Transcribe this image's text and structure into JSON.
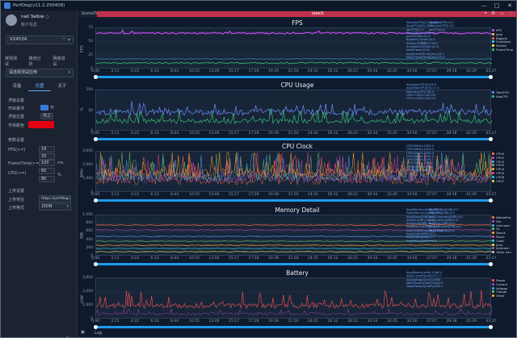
{
  "window": {
    "title": "PerfDog(v11.2.250408)",
    "controls": [
      "—",
      "□",
      "✕"
    ]
  },
  "user": {
    "name": "nail 3albie ◌",
    "status": "帐户信息"
  },
  "device": {
    "name": "V2453A"
  },
  "sidebar": {
    "tabs": [
      "常规测试",
      "离线分析",
      "网络测试"
    ],
    "app_placeholder": "请选择测试应用",
    "subtabs": [
      "设备",
      "设置",
      "关于"
    ],
    "float_section": "浮窗设置",
    "open_float": "开启悬浮",
    "open_float_value": "开",
    "float_position": "浮窗位置",
    "float_position_value": "右上",
    "font_color": "字体颜色",
    "params_section": "参数设置",
    "fps_label": "FPS(>=)",
    "fps_value": "18",
    "fps_value2": "25",
    "frametime_label": "FrameTime(>=)",
    "frametime_value": "100",
    "frametime_unit": "ms",
    "cpu_label": "CPU(<=)",
    "cpu_value": "60",
    "cpu_unit": "%",
    "cpu_value2": "80",
    "upload_section": "上传设置",
    "upload_addr_label": "上传地址",
    "upload_addr": "https://perfdog.q",
    "upload_fmt_label": "上传格式",
    "upload_fmt": "JSON",
    "bottom_btn": "数据"
  },
  "tabbar": {
    "scene_tab": "SceneTab",
    "label": "label1"
  },
  "bottombar": {
    "log": "Log"
  },
  "accent": "#c1314b",
  "xticks": [
    "0:00",
    "2:11",
    "4:22",
    "6:33",
    "8:44",
    "10:55",
    "13:06",
    "15:17",
    "17:28",
    "19:39",
    "21:50",
    "24:01",
    "26:12",
    "28:23",
    "30:34",
    "32:45",
    "34:56",
    "37:07",
    "39:18",
    "41:29",
    "43:27"
  ],
  "panels": [
    {
      "title": "FPS",
      "ylabel": "FPS",
      "yticks": [
        "75",
        "50",
        "25",
        "0"
      ],
      "stats": [
        "Median(FPS)[120]:60.0",
        "Avg(FPS)[60]:59.7",
        "Var(FPS):0.1",
        "Drop(FPS):0(/10min)",
        "Jank(/10min):0.0",
        "BigJank(/10min):0.0",
        "Stutter(卡顿率):0.00%",
        "SmallJank(/10min):0.0",
        "InterFrame:0.00",
        "Avg(FrameTime)[ms]:16.7",
        "Max(FrameTime)[ms]:33.3"
      ],
      "stats2": [
        "Avg(JankFPS):0.0",
        "Max(JankFPS):0.0",
        "JankTime:0"
      ],
      "legend": [
        {
          "name": "FPS",
          "color": "#c04cf0"
        },
        {
          "name": "Jank",
          "color": "#ffb74d"
        },
        {
          "name": "BigJank",
          "color": "#ff5252"
        },
        {
          "name": "SmallJank",
          "color": "#4dd0e1"
        },
        {
          "name": "Stutter",
          "color": "#ffee58"
        },
        {
          "name": "FrameTime",
          "color": "#38c172"
        }
      ]
    },
    {
      "title": "CPU Usage",
      "ylabel": "%",
      "yticks": [
        "100",
        "50",
        "0"
      ],
      "stats": [
        "Avg(AppCPU)[%]:8.5",
        "Avg(TotalCPU)[%]:17.4",
        "Max(AppCPU):26.3",
        "CPU<=60%:100.0%",
        "CPU<=80%:100.0%"
      ],
      "stats2": [],
      "legend": [
        {
          "name": "TotalCPU",
          "color": "#6a8cff"
        },
        {
          "name": "AppCPU",
          "color": "#38c172"
        }
      ]
    },
    {
      "title": "CPU Clock",
      "ylabel": "MHz",
      "yticks": [
        "3,000",
        "2,000",
        "1,000",
        "0"
      ],
      "stats": [
        "CPU0(MHz):1023.4",
        "CPU1(MHz):1023.4",
        "CPU2(MHz):1204.4",
        "CPU3(MHz):1204.4",
        "CPU4(MHz):1378.1",
        "CPU5(MHz):1378.1",
        "CPU6(MHz):1378.1",
        "CPU7(MHz):1626.2"
      ],
      "stats2": [],
      "legend": [
        {
          "name": "CPU0",
          "color": "#ff7043"
        },
        {
          "name": "CPU1",
          "color": "#ab47bc"
        },
        {
          "name": "CPU2",
          "color": "#42a5f5"
        },
        {
          "name": "CPU3",
          "color": "#66bb6a"
        },
        {
          "name": "CPU4",
          "color": "#ffa726"
        },
        {
          "name": "CPU5",
          "color": "#ec407a"
        },
        {
          "name": "CPU6",
          "color": "#26c6da"
        },
        {
          "name": "CPU7",
          "color": "#d4e157"
        }
      ]
    },
    {
      "title": "Memory Detail",
      "ylabel": "MB",
      "yticks": [
        "1,000",
        "800",
        "600",
        "400",
        "200",
        "0"
      ],
      "stats": [
        "Avg(Memory)[MB]:760.3",
        "Peak(Memory)[MB]:793.1",
        "Avg(Swap)[MB]:0.0",
        "Avg(GL)[MB]:146.5",
        "Avg(Java)[MB]:42.6",
        "Avg(Native)[MB]:112.3",
        "Avg(Graphics)[MB]:219.8",
        "Avg(Code)[MB]:92.1",
        "Avg(Stack)[MB]:1.2",
        "Avg(Other)[MB]:55.8"
      ],
      "stats2": [
        "Avg(Virtual)[MB]:0.0",
        "Avg(PSS)[MB]:0.0",
        "Avg(Unknown)[MB]:0.0",
        "Avg(Dalvik)[MB]:0.0",
        "Avg(EGL)[MB]:0.0",
        "Avg(Ashmem)[MB]:0.0",
        "Avg(Dex)[MB]:0.0"
      ],
      "legend": [
        {
          "name": "NativePss",
          "color": "#ff7043"
        },
        {
          "name": "Gfx",
          "color": "#ab47bc"
        },
        {
          "name": "Unknown",
          "color": "#42a5f5"
        },
        {
          "name": "GL",
          "color": "#66bb6a"
        },
        {
          "name": "Dalvik",
          "color": "#ffa726"
        },
        {
          "name": "Stack",
          "color": "#ec407a"
        },
        {
          "name": "Code",
          "color": "#26c6da"
        },
        {
          "name": "Java",
          "color": "#d4e157"
        },
        {
          "name": "Ashmem",
          "color": "#8d6e63"
        },
        {
          "name": "Other dev",
          "color": "#bdbdbd"
        }
      ]
    },
    {
      "title": "Battery",
      "ylabel": "mW",
      "yticks": [
        "3,000",
        "2,000",
        "1,000",
        "0"
      ],
      "stats": [
        "Avg(Power)[mW]:1186.4",
        "Avg(Current)[mA]:317.7",
        "Avg(Voltage)[mV]:3980",
        "Max(Power)[mW]:2640.6",
        "Total(Power)[mWh]:859.7"
      ],
      "stats2": [],
      "legend": [
        {
          "name": "Power",
          "color": "#ff5252"
        },
        {
          "name": "Current",
          "color": "#ab47bc"
        },
        {
          "name": "Voltage",
          "color": "#42a5f5"
        },
        {
          "name": "Charge",
          "color": "#66bb6a"
        },
        {
          "name": "Other",
          "color": "#ffa726"
        }
      ]
    }
  ]
}
